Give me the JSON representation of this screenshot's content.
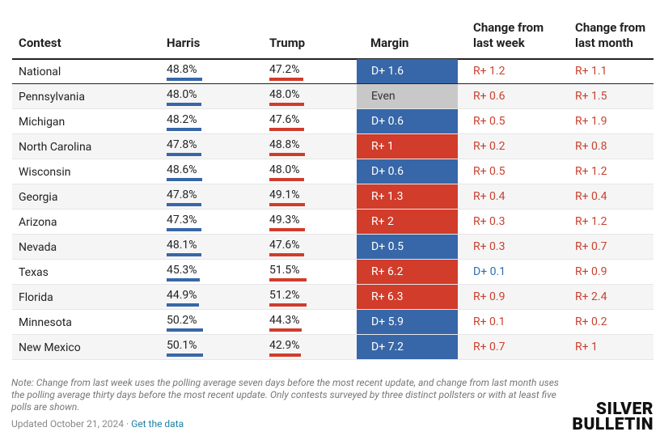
{
  "table": {
    "header": [
      "Contest",
      "Harris",
      "Trump",
      "Margin",
      "Change from last week",
      "Change from last month"
    ],
    "rows": [
      {
        "contest": "National",
        "harris": {
          "value": 48.8,
          "label": "48.8%"
        },
        "trump": {
          "value": 47.2,
          "label": "47.2%"
        },
        "margin": "D+ 1.6",
        "week": "R+ 1.2",
        "month": "R+ 1.1"
      },
      {
        "contest": "Pennsylvania",
        "harris": {
          "value": 48.0,
          "label": "48.0%"
        },
        "trump": {
          "value": 48.0,
          "label": "48.0%"
        },
        "margin": "Even",
        "week": "R+ 0.6",
        "month": "R+ 1.5"
      },
      {
        "contest": "Michigan",
        "harris": {
          "value": 48.2,
          "label": "48.2%"
        },
        "trump": {
          "value": 47.6,
          "label": "47.6%"
        },
        "margin": "D+ 0.6",
        "week": "R+ 0.5",
        "month": "R+ 1.9"
      },
      {
        "contest": "North Carolina",
        "harris": {
          "value": 47.8,
          "label": "47.8%"
        },
        "trump": {
          "value": 48.8,
          "label": "48.8%"
        },
        "margin": "R+ 1",
        "week": "R+ 0.2",
        "month": "R+ 0.8"
      },
      {
        "contest": "Wisconsin",
        "harris": {
          "value": 48.6,
          "label": "48.6%"
        },
        "trump": {
          "value": 48.0,
          "label": "48.0%"
        },
        "margin": "D+ 0.6",
        "week": "R+ 0.5",
        "month": "R+ 1.2"
      },
      {
        "contest": "Georgia",
        "harris": {
          "value": 47.8,
          "label": "47.8%"
        },
        "trump": {
          "value": 49.1,
          "label": "49.1%"
        },
        "margin": "R+ 1.3",
        "week": "R+ 0.4",
        "month": "R+ 0.4"
      },
      {
        "contest": "Arizona",
        "harris": {
          "value": 47.3,
          "label": "47.3%"
        },
        "trump": {
          "value": 49.3,
          "label": "49.3%"
        },
        "margin": "R+ 2",
        "week": "R+ 0.3",
        "month": "R+ 1.2"
      },
      {
        "contest": "Nevada",
        "harris": {
          "value": 48.1,
          "label": "48.1%"
        },
        "trump": {
          "value": 47.6,
          "label": "47.6%"
        },
        "margin": "D+ 0.5",
        "week": "R+ 0.3",
        "month": "R+ 0.7"
      },
      {
        "contest": "Texas",
        "harris": {
          "value": 45.3,
          "label": "45.3%"
        },
        "trump": {
          "value": 51.5,
          "label": "51.5%"
        },
        "margin": "R+ 6.2",
        "week": "D+ 0.1",
        "month": "R+ 0.9"
      },
      {
        "contest": "Florida",
        "harris": {
          "value": 44.9,
          "label": "44.9%"
        },
        "trump": {
          "value": 51.2,
          "label": "51.2%"
        },
        "margin": "R+ 6.3",
        "week": "R+ 0.9",
        "month": "R+ 2.4"
      },
      {
        "contest": "Minnesota",
        "harris": {
          "value": 50.2,
          "label": "50.2%"
        },
        "trump": {
          "value": 44.3,
          "label": "44.3%"
        },
        "margin": "D+ 5.9",
        "week": "R+ 0.1",
        "month": "R+ 0.2"
      },
      {
        "contest": "New Mexico",
        "harris": {
          "value": 50.1,
          "label": "50.1%"
        },
        "trump": {
          "value": 42.9,
          "label": "42.9%"
        },
        "margin": "D+ 7.2",
        "week": "R+ 0.7",
        "month": "R+ 1"
      }
    ]
  },
  "footer": {
    "note": "Note: Change from last week uses the polling average seven days before the most recent update, and change from last month uses the polling average thirty days before the most recent update. Only contests surveyed by three distinct pollsters or with at least five polls are shown.",
    "updated": "Updated October 21, 2024 ·",
    "link": "Get the data",
    "logo": [
      "SILVER",
      "BULLETIN"
    ]
  }
}
